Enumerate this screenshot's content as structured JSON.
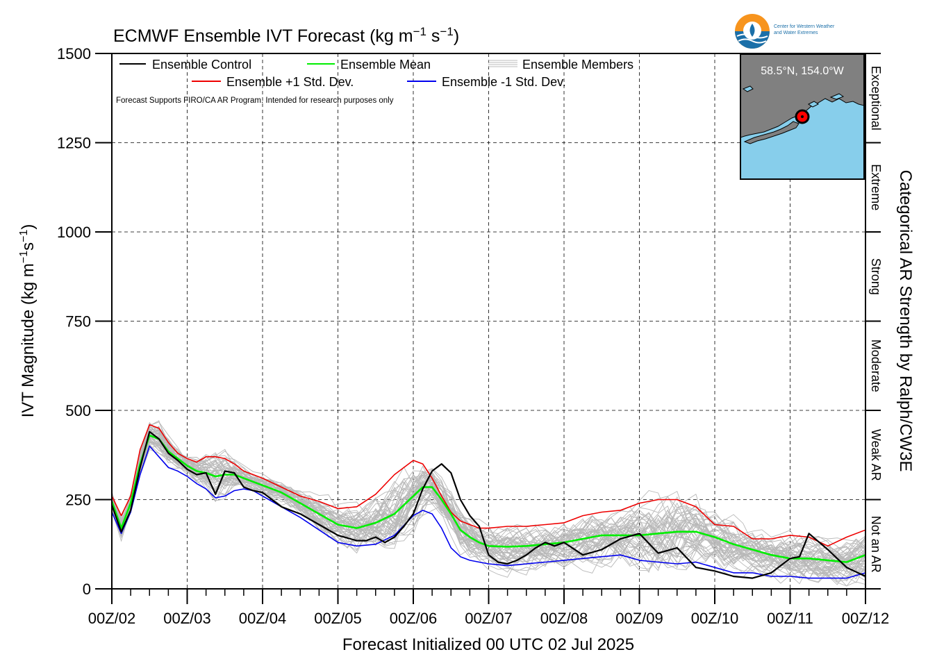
{
  "chart_data": {
    "type": "line",
    "title": "ECMWF Ensemble IVT Forecast (kg m",
    "title_unit_sup1": "−1",
    "title_unit_mid": " s",
    "title_unit_sup2": "−1",
    "title_unit_end": ")",
    "ylabel": "IVT Magnitude (kg m",
    "ylabel_sup1": "−1",
    "ylabel_mid": "s",
    "ylabel_sup2": "−1",
    "ylabel_end": ")",
    "xlabel": "Forecast Initialized 00 UTC 02 Jul 2025",
    "right_label": "Categorical AR Strength by Ralph/CW3E",
    "ylim": [
      0,
      1500
    ],
    "xlim": [
      0,
      10
    ],
    "yticks": [
      {
        "v": 0,
        "label": "0"
      },
      {
        "v": 250,
        "label": "250"
      },
      {
        "v": 500,
        "label": "500"
      },
      {
        "v": 750,
        "label": "750"
      },
      {
        "v": 1000,
        "label": "1000"
      },
      {
        "v": 1250,
        "label": "1250"
      },
      {
        "v": 1500,
        "label": "1500"
      }
    ],
    "xticks": [
      {
        "v": 0,
        "label": "00Z/02"
      },
      {
        "v": 1,
        "label": "00Z/03"
      },
      {
        "v": 2,
        "label": "00Z/04"
      },
      {
        "v": 3,
        "label": "00Z/05"
      },
      {
        "v": 4,
        "label": "00Z/06"
      },
      {
        "v": 5,
        "label": "00Z/07"
      },
      {
        "v": 6,
        "label": "00Z/08"
      },
      {
        "v": 7,
        "label": "00Z/09"
      },
      {
        "v": 8,
        "label": "00Z/10"
      },
      {
        "v": 9,
        "label": "00Z/11"
      },
      {
        "v": 10,
        "label": "00Z/12"
      }
    ],
    "grid": true,
    "categories": [
      {
        "name": "Not an AR",
        "from": 0,
        "to": 250
      },
      {
        "name": "Weak AR",
        "from": 250,
        "to": 500
      },
      {
        "name": "Moderate",
        "from": 500,
        "to": 750
      },
      {
        "name": "Strong",
        "from": 750,
        "to": 1000
      },
      {
        "name": "Extreme",
        "from": 1000,
        "to": 1250
      },
      {
        "name": "Exceptional",
        "from": 1250,
        "to": 1500
      }
    ],
    "legend": {
      "placement": "top-left",
      "entries": [
        {
          "label": "Ensemble Control",
          "color": "#000000"
        },
        {
          "label": "Ensemble Mean",
          "color": "#00ee00"
        },
        {
          "label": "Ensemble Members",
          "color": "#bbbbbb"
        },
        {
          "label": "Ensemble +1 Std. Dev.",
          "color": "#ee0000"
        },
        {
          "label": "Ensemble -1 Std. Dev.",
          "color": "#0000ee"
        }
      ]
    },
    "note": "Forecast Supports FIRO/CA AR Program. Intended for research purposes only",
    "series": [
      {
        "name": "Ensemble Control",
        "color": "#000000",
        "x": [
          0,
          0.125,
          0.25,
          0.375,
          0.5,
          0.625,
          0.75,
          0.875,
          1,
          1.125,
          1.25,
          1.375,
          1.5,
          1.625,
          1.75,
          1.875,
          2,
          2.25,
          2.5,
          2.75,
          3,
          3.25,
          3.375,
          3.5,
          3.625,
          3.75,
          3.875,
          4,
          4.125,
          4.25,
          4.375,
          4.5,
          4.625,
          4.75,
          4.875,
          5,
          5.125,
          5.25,
          5.375,
          5.5,
          5.625,
          5.75,
          5.875,
          6,
          6.25,
          6.5,
          6.75,
          7,
          7.25,
          7.5,
          7.75,
          8,
          8.25,
          8.5,
          8.75,
          9,
          9.125,
          9.25,
          9.5,
          9.75,
          10
        ],
        "values": [
          235,
          160,
          220,
          340,
          440,
          420,
          380,
          360,
          335,
          320,
          325,
          265,
          330,
          325,
          285,
          275,
          270,
          230,
          210,
          180,
          150,
          135,
          135,
          145,
          130,
          145,
          175,
          210,
          280,
          330,
          350,
          325,
          250,
          205,
          175,
          95,
          75,
          70,
          80,
          95,
          115,
          130,
          120,
          130,
          95,
          110,
          140,
          155,
          100,
          115,
          60,
          50,
          35,
          30,
          45,
          85,
          90,
          155,
          110,
          60,
          35
        ]
      },
      {
        "name": "Ensemble Mean",
        "color": "#00ee00",
        "x": [
          0,
          0.125,
          0.25,
          0.375,
          0.5,
          0.625,
          0.75,
          0.875,
          1,
          1.125,
          1.25,
          1.375,
          1.5,
          1.625,
          1.75,
          1.875,
          2,
          2.25,
          2.5,
          2.75,
          3,
          3.25,
          3.5,
          3.75,
          4,
          4.125,
          4.25,
          4.375,
          4.5,
          4.625,
          4.75,
          4.875,
          5,
          5.25,
          5.5,
          5.75,
          6,
          6.25,
          6.5,
          6.75,
          7,
          7.25,
          7.5,
          7.75,
          8,
          8.25,
          8.5,
          8.75,
          9,
          9.25,
          9.5,
          9.75,
          10
        ],
        "values": [
          245,
          170,
          240,
          350,
          430,
          420,
          385,
          365,
          345,
          330,
          325,
          315,
          320,
          320,
          310,
          300,
          290,
          270,
          240,
          210,
          180,
          170,
          185,
          210,
          260,
          285,
          285,
          250,
          210,
          165,
          145,
          130,
          120,
          118,
          120,
          125,
          130,
          140,
          150,
          150,
          150,
          155,
          160,
          160,
          145,
          125,
          110,
          95,
          85,
          85,
          80,
          75,
          95
        ]
      },
      {
        "name": "Ensemble +1 Std. Dev.",
        "color": "#ee0000",
        "x": [
          0,
          0.125,
          0.25,
          0.375,
          0.5,
          0.625,
          0.75,
          0.875,
          1,
          1.125,
          1.25,
          1.375,
          1.5,
          1.625,
          1.75,
          1.875,
          2,
          2.25,
          2.5,
          2.75,
          3,
          3.25,
          3.5,
          3.75,
          4,
          4.125,
          4.25,
          4.375,
          4.5,
          4.625,
          4.75,
          4.875,
          5,
          5.25,
          5.5,
          5.75,
          6,
          6.25,
          6.5,
          6.75,
          7,
          7.25,
          7.5,
          7.75,
          8,
          8.25,
          8.5,
          8.75,
          9,
          9.25,
          9.5,
          9.75,
          10
        ],
        "values": [
          260,
          205,
          260,
          390,
          460,
          450,
          410,
          380,
          365,
          355,
          370,
          370,
          365,
          350,
          330,
          320,
          310,
          285,
          260,
          245,
          225,
          230,
          265,
          320,
          360,
          350,
          310,
          260,
          215,
          190,
          180,
          170,
          170,
          175,
          175,
          180,
          185,
          205,
          215,
          220,
          240,
          250,
          250,
          230,
          180,
          175,
          140,
          140,
          150,
          145,
          120,
          145,
          165
        ]
      },
      {
        "name": "Ensemble -1 Std. Dev.",
        "color": "#0000ee",
        "x": [
          0,
          0.125,
          0.25,
          0.375,
          0.5,
          0.625,
          0.75,
          0.875,
          1,
          1.125,
          1.25,
          1.375,
          1.5,
          1.625,
          1.75,
          1.875,
          2,
          2.25,
          2.5,
          2.75,
          3,
          3.25,
          3.5,
          3.75,
          4,
          4.125,
          4.25,
          4.375,
          4.5,
          4.625,
          4.75,
          4.875,
          5,
          5.25,
          5.5,
          5.75,
          6,
          6.25,
          6.5,
          6.75,
          7,
          7.25,
          7.5,
          7.75,
          8,
          8.25,
          8.5,
          8.75,
          9,
          9.25,
          9.5,
          9.75,
          10
        ],
        "values": [
          215,
          155,
          215,
          320,
          400,
          370,
          340,
          330,
          315,
          295,
          280,
          255,
          260,
          275,
          280,
          275,
          260,
          230,
          200,
          165,
          130,
          120,
          125,
          150,
          205,
          220,
          210,
          170,
          115,
          90,
          80,
          75,
          70,
          65,
          70,
          75,
          80,
          85,
          90,
          95,
          80,
          75,
          70,
          75,
          60,
          45,
          45,
          35,
          35,
          30,
          30,
          30,
          45
        ]
      }
    ]
  },
  "inset": {
    "location_label": "58.5°N, 154.0°W",
    "ocean_color": "#87ceeb",
    "land_color": "#808080",
    "marker_color": "#ff0000"
  },
  "logo": {
    "line1": "Center for Western Weather",
    "line2": "and Water Extremes"
  }
}
